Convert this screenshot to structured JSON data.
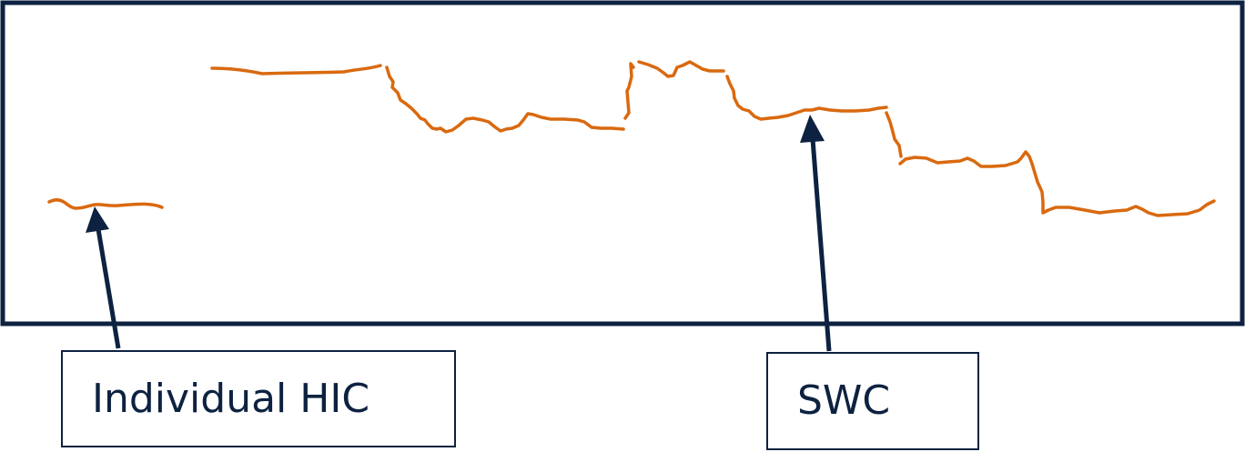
{
  "labels": {
    "individual_hic": "Individual HIC",
    "swc": "SWC"
  },
  "colors": {
    "frame": "#0d2240",
    "trace": "#d9690f",
    "arrow": "#0d2240",
    "text": "#0d2240"
  }
}
